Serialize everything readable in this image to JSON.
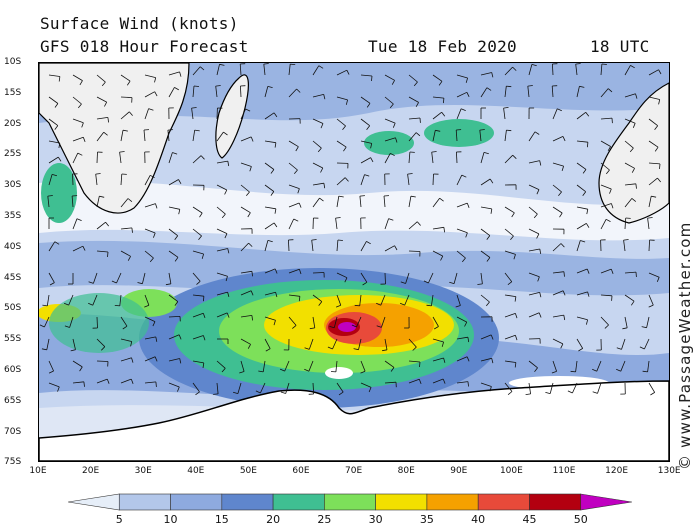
{
  "header": {
    "title": "Surface Wind (knots)",
    "subtitle": "GFS 018 Hour Forecast",
    "date": "Tue 18 Feb 2020",
    "time": "18 UTC"
  },
  "credit": "© www.PassageWeather.com",
  "latitudes": [
    "10S",
    "15S",
    "20S",
    "25S",
    "30S",
    "35S",
    "40S",
    "45S",
    "50S",
    "55S",
    "60S",
    "65S",
    "70S",
    "75S"
  ],
  "longitudes": [
    "10E",
    "20E",
    "30E",
    "40E",
    "50E",
    "60E",
    "70E",
    "80E",
    "90E",
    "100E",
    "110E",
    "120E",
    "130E"
  ],
  "scale": {
    "labels": [
      "5",
      "10",
      "15",
      "20",
      "25",
      "30",
      "35",
      "40",
      "45",
      "50"
    ],
    "colors": [
      "#e6eef8",
      "#b3c7ea",
      "#8eaadf",
      "#5f86cd",
      "#3fbf92",
      "#7de05a",
      "#f2e000",
      "#f5a100",
      "#e84a3a",
      "#b30010",
      "#c000c0"
    ]
  }
}
